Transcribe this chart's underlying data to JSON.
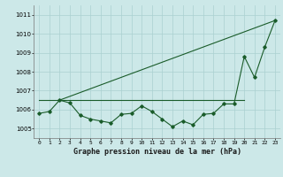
{
  "title": "Graphe pression niveau de la mer (hPa)",
  "x_labels": [
    "0",
    "1",
    "2",
    "3",
    "4",
    "5",
    "6",
    "7",
    "8",
    "9",
    "10",
    "11",
    "12",
    "13",
    "14",
    "15",
    "16",
    "17",
    "18",
    "19",
    "20",
    "21",
    "22",
    "23"
  ],
  "ylim": [
    1004.5,
    1011.5
  ],
  "yticks": [
    1005,
    1006,
    1007,
    1008,
    1009,
    1010,
    1011
  ],
  "xlim": [
    -0.5,
    23.5
  ],
  "bg_color": "#cce8e8",
  "grid_color": "#aad0d0",
  "line_color": "#1a5c2a",
  "flat_line_x": [
    0,
    1,
    2,
    3,
    4,
    5,
    6,
    7,
    8,
    9,
    10,
    11,
    12,
    13,
    14,
    15,
    16,
    17,
    18,
    19,
    20
  ],
  "flat_line_y": [
    1006.5,
    1006.5,
    1006.5,
    1006.5,
    1006.5,
    1006.5,
    1006.5,
    1006.5,
    1006.5,
    1006.5,
    1006.5,
    1006.5,
    1006.5,
    1006.5,
    1006.5,
    1006.5,
    1006.5,
    1006.5,
    1006.5,
    1006.5,
    1006.5
  ],
  "rising_line_x": [
    2,
    23
  ],
  "rising_line_y": [
    1006.5,
    1010.7
  ],
  "main_data_x": [
    0,
    1,
    2,
    3,
    4,
    5,
    6,
    7,
    8,
    9,
    10,
    11,
    12,
    13,
    14,
    15,
    16,
    17,
    18,
    19,
    20,
    21,
    22,
    23
  ],
  "main_data_y": [
    1005.8,
    1005.9,
    1006.5,
    1006.35,
    1005.7,
    1005.5,
    1005.4,
    1005.3,
    1005.75,
    1005.8,
    1006.2,
    1005.9,
    1005.5,
    1005.1,
    1005.4,
    1005.2,
    1005.75,
    1005.8,
    1006.3,
    1006.3,
    1008.8,
    1007.7,
    1009.3,
    1010.7
  ]
}
